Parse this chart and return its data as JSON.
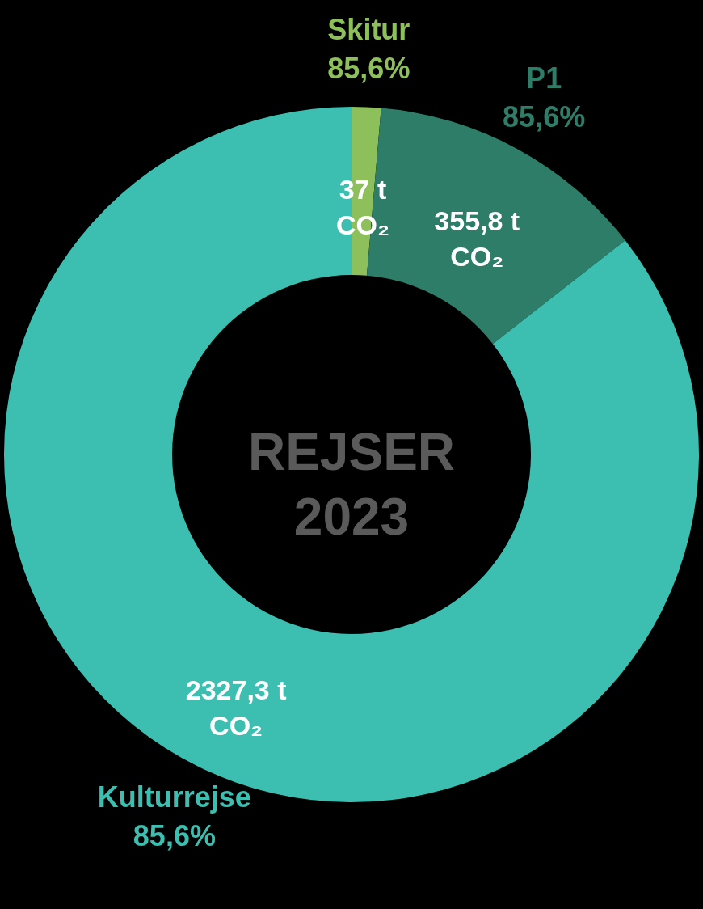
{
  "chart_data": {
    "type": "donut",
    "title": "REJSER 2023",
    "categories": [
      "Skitur",
      "P1",
      "Kulturrejse"
    ],
    "values": [
      37,
      355.8,
      2327.3
    ],
    "colors": [
      "#8dc05a",
      "#2e7d68",
      "#3cbfb0"
    ],
    "value_labels": [
      "37 t\nCO₂",
      "355,8 t\nCO₂",
      "2327,3 t\nCO₂"
    ],
    "annotations": [
      "85,6%",
      "85,6%",
      "85,6%"
    ]
  }
}
